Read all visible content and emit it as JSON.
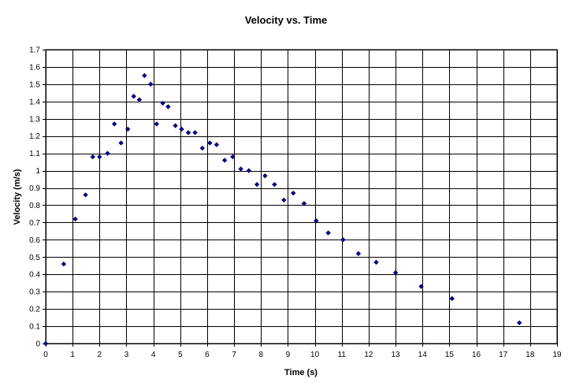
{
  "chart_data": {
    "type": "scatter",
    "title": "Velocity vs. Time",
    "xlabel": "Time (s)",
    "ylabel": "Velocity (m/s)",
    "xlim": [
      0,
      19
    ],
    "ylim": [
      0,
      1.7
    ],
    "x_ticks": [
      "0",
      "1",
      "2",
      "3",
      "4",
      "5",
      "6",
      "7",
      "8",
      "9",
      "10",
      "11",
      "12",
      "13",
      "14",
      "15",
      "16",
      "17",
      "18",
      "19"
    ],
    "y_ticks": [
      "0",
      "0.1",
      "0.2",
      "0.3",
      "0.4",
      "0.5",
      "0.6",
      "0.7",
      "0.8",
      "0.9",
      "1",
      "1.1",
      "1.2",
      "1.3",
      "1.4",
      "1.5",
      "1.6",
      "1.7"
    ],
    "grid": true,
    "marker": "diamond",
    "marker_color": "#000080",
    "series": [
      {
        "points": [
          [
            0.0,
            0.0
          ],
          [
            0.67,
            0.46
          ],
          [
            1.1,
            0.72
          ],
          [
            1.48,
            0.86
          ],
          [
            1.75,
            1.08
          ],
          [
            2.0,
            1.08
          ],
          [
            2.3,
            1.1
          ],
          [
            2.55,
            1.27
          ],
          [
            2.8,
            1.16
          ],
          [
            3.05,
            1.24
          ],
          [
            3.27,
            1.43
          ],
          [
            3.48,
            1.41
          ],
          [
            3.67,
            1.55
          ],
          [
            3.9,
            1.5
          ],
          [
            4.12,
            1.27
          ],
          [
            4.35,
            1.39
          ],
          [
            4.55,
            1.37
          ],
          [
            4.82,
            1.26
          ],
          [
            5.05,
            1.24
          ],
          [
            5.3,
            1.22
          ],
          [
            5.55,
            1.22
          ],
          [
            5.82,
            1.13
          ],
          [
            6.1,
            1.16
          ],
          [
            6.35,
            1.15
          ],
          [
            6.65,
            1.06
          ],
          [
            6.95,
            1.08
          ],
          [
            7.25,
            1.01
          ],
          [
            7.55,
            1.0
          ],
          [
            7.85,
            0.92
          ],
          [
            8.15,
            0.97
          ],
          [
            8.5,
            0.92
          ],
          [
            8.85,
            0.83
          ],
          [
            9.2,
            0.87
          ],
          [
            9.6,
            0.81
          ],
          [
            10.05,
            0.71
          ],
          [
            10.5,
            0.64
          ],
          [
            11.05,
            0.6
          ],
          [
            11.62,
            0.52
          ],
          [
            12.28,
            0.47
          ],
          [
            13.0,
            0.41
          ],
          [
            13.95,
            0.33
          ],
          [
            15.1,
            0.26
          ],
          [
            17.6,
            0.12
          ]
        ]
      }
    ]
  }
}
